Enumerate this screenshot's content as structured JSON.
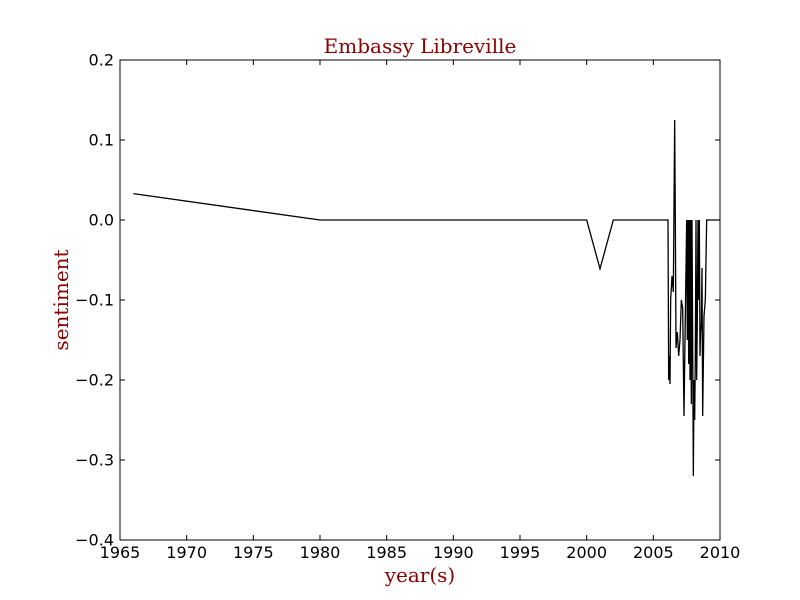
{
  "chart_data": {
    "type": "line",
    "title": "Embassy Libreville",
    "xlabel": "year(s)",
    "ylabel": "sentiment",
    "xlim": [
      1965,
      2010
    ],
    "ylim": [
      -0.4,
      0.2
    ],
    "x_ticks": [
      1965,
      1970,
      1975,
      1980,
      1985,
      1990,
      1995,
      2000,
      2005,
      2010
    ],
    "x_tick_labels": [
      "1965",
      "1970",
      "1975",
      "1980",
      "1985",
      "1990",
      "1995",
      "2000",
      "2005",
      "2010"
    ],
    "y_ticks": [
      0.2,
      0.1,
      0.0,
      -0.1,
      -0.2,
      -0.3,
      -0.4
    ],
    "y_tick_labels": [
      "0.2",
      "0.1",
      "0.0",
      "−0.1",
      "−0.2",
      "−0.3",
      "−0.4"
    ],
    "grid": false,
    "line_color": "#000000",
    "title_color": "#8b0000",
    "series": [
      {
        "x": [
          1966.0,
          1980.0,
          2000.0,
          2001.0,
          2002.0,
          2006.1,
          2006.15,
          2006.2,
          2006.25,
          2006.3,
          2006.4,
          2006.5,
          2006.6,
          2006.65,
          2006.7,
          2006.8,
          2006.9,
          2007.0,
          2007.1,
          2007.2,
          2007.3,
          2007.4,
          2007.5,
          2007.55,
          2007.6,
          2007.65,
          2007.7,
          2007.75,
          2007.8,
          2007.85,
          2007.9,
          2007.95,
          2008.0,
          2008.05,
          2008.1,
          2008.15,
          2008.2,
          2008.25,
          2008.3,
          2008.35,
          2008.4,
          2008.45,
          2008.5,
          2008.55,
          2008.6,
          2008.65,
          2008.7,
          2008.8,
          2008.9,
          2009.0,
          2009.1,
          2009.2,
          2009.3,
          2009.4,
          2009.6,
          2009.7,
          2009.8,
          2009.9,
          2010.0
        ],
        "values": [
          0.033,
          0.0,
          0.0,
          -0.061,
          0.0,
          0.0,
          -0.2,
          -0.17,
          -0.205,
          -0.1,
          -0.07,
          -0.09,
          0.125,
          0.0,
          -0.16,
          -0.14,
          -0.17,
          -0.15,
          -0.1,
          -0.11,
          -0.245,
          -0.12,
          0.0,
          -0.15,
          0.0,
          -0.18,
          0.0,
          -0.2,
          0.0,
          -0.23,
          0.0,
          -0.15,
          -0.32,
          -0.2,
          -0.25,
          -0.17,
          0.0,
          -0.2,
          -0.12,
          0.0,
          -0.1,
          0.0,
          -0.17,
          -0.14,
          -0.13,
          -0.06,
          -0.245,
          -0.12,
          -0.1,
          0.0,
          0.0,
          0.0,
          0.0,
          0.0,
          0.0,
          0.0,
          0.0,
          0.0,
          0.0
        ]
      }
    ]
  }
}
